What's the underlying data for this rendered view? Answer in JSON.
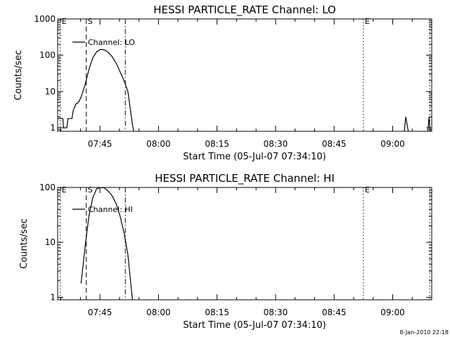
{
  "chart_data": [
    {
      "type": "line",
      "title": "HESSI PARTICLE_RATE Channel: LO",
      "xlabel": "Start Time (05-Jul-07 07:34:10)",
      "ylabel": "Counts/sec",
      "y_scale": "log",
      "ylim": [
        0.8,
        1000
      ],
      "xlim": [
        "07:34:10",
        "09:10:00"
      ],
      "x_ticks": [
        "07:45",
        "08:00",
        "08:15",
        "08:30",
        "08:45",
        "09:00"
      ],
      "y_ticks": [
        "1",
        "10",
        "100",
        "1000"
      ],
      "legend": "Channel: LO",
      "legend_position": "top-left",
      "markers": [
        {
          "label": "E",
          "time": "07:34:50",
          "style": "dotted"
        },
        {
          "label": "S",
          "time": "07:41:30",
          "style": "dashed"
        },
        {
          "label": "",
          "time": "07:51:30",
          "style": "dashdot"
        },
        {
          "label": "E",
          "time": "08:52:30",
          "style": "dotted"
        },
        {
          "label": "",
          "time": "09:09:30",
          "style": "dotted"
        }
      ],
      "series": [
        {
          "segments": [
            [
              [
                "07:34:10",
                1.8
              ],
              [
                "07:35:30",
                1.8
              ],
              [
                "07:35:40",
                1.0
              ],
              [
                "07:36:30",
                1.0
              ],
              [
                "07:36:50",
                1.8
              ],
              [
                "07:37:50",
                1.8
              ],
              [
                "07:38:10",
                3.0
              ],
              [
                "07:38:50",
                4.5
              ],
              [
                "07:39:30",
                5.0
              ],
              [
                "07:40:10",
                7.0
              ],
              [
                "07:41:10",
                15
              ],
              [
                "07:42:10",
                40
              ],
              [
                "07:43:10",
                85
              ],
              [
                "07:44:10",
                125
              ],
              [
                "07:45:10",
                145
              ],
              [
                "07:46:10",
                140
              ],
              [
                "07:47:10",
                120
              ],
              [
                "07:48:10",
                90
              ],
              [
                "07:49:10",
                60
              ],
              [
                "07:50:10",
                35
              ],
              [
                "07:51:10",
                20
              ],
              [
                "07:52:10",
                10
              ],
              [
                "07:52:50",
                3
              ],
              [
                "07:53:20",
                1.2
              ],
              [
                "07:53:40",
                0.8
              ]
            ],
            [
              [
                "09:03:00",
                0.8
              ],
              [
                "09:03:20",
                2.0
              ],
              [
                "09:03:50",
                1.0
              ],
              [
                "09:04:00",
                0.8
              ]
            ],
            [
              [
                "09:09:00",
                0.8
              ],
              [
                "09:09:20",
                2.0
              ],
              [
                "09:09:30",
                1.0
              ],
              [
                "09:09:40",
                0.8
              ]
            ]
          ]
        }
      ]
    },
    {
      "type": "line",
      "title": "HESSI PARTICLE_RATE Channel: HI",
      "xlabel": "Start Time (05-Jul-07 07:34:10)",
      "ylabel": "Counts/sec",
      "y_scale": "log",
      "ylim": [
        0.9,
        100
      ],
      "xlim": [
        "07:34:10",
        "09:10:00"
      ],
      "x_ticks": [
        "07:45",
        "08:00",
        "08:15",
        "08:30",
        "08:45",
        "09:00"
      ],
      "y_ticks": [
        "1",
        "10",
        "100"
      ],
      "legend": "Channel: HI",
      "legend_position": "top-left",
      "markers": [
        {
          "label": "E",
          "time": "07:34:50",
          "style": "dotted"
        },
        {
          "label": "S",
          "time": "07:41:30",
          "style": "dashed"
        },
        {
          "label": "",
          "time": "07:51:30",
          "style": "dashdot"
        },
        {
          "label": "E",
          "time": "08:52:30",
          "style": "dotted"
        },
        {
          "label": "",
          "time": "09:09:30",
          "style": "dotted"
        }
      ],
      "series": [
        {
          "segments": [
            [
              [
                "07:40:10",
                1.8
              ],
              [
                "07:41:10",
                8
              ],
              [
                "07:42:10",
                30
              ],
              [
                "07:43:10",
                65
              ],
              [
                "07:44:10",
                95
              ],
              [
                "07:45:10",
                100
              ],
              [
                "07:46:10",
                98
              ],
              [
                "07:47:10",
                85
              ],
              [
                "07:48:10",
                70
              ],
              [
                "07:49:10",
                50
              ],
              [
                "07:50:10",
                30
              ],
              [
                "07:51:10",
                15
              ],
              [
                "07:52:10",
                6
              ],
              [
                "07:52:50",
                2
              ],
              [
                "07:53:20",
                0.9
              ]
            ]
          ]
        }
      ]
    }
  ],
  "stamp": "8-Jan-2010 22:18"
}
